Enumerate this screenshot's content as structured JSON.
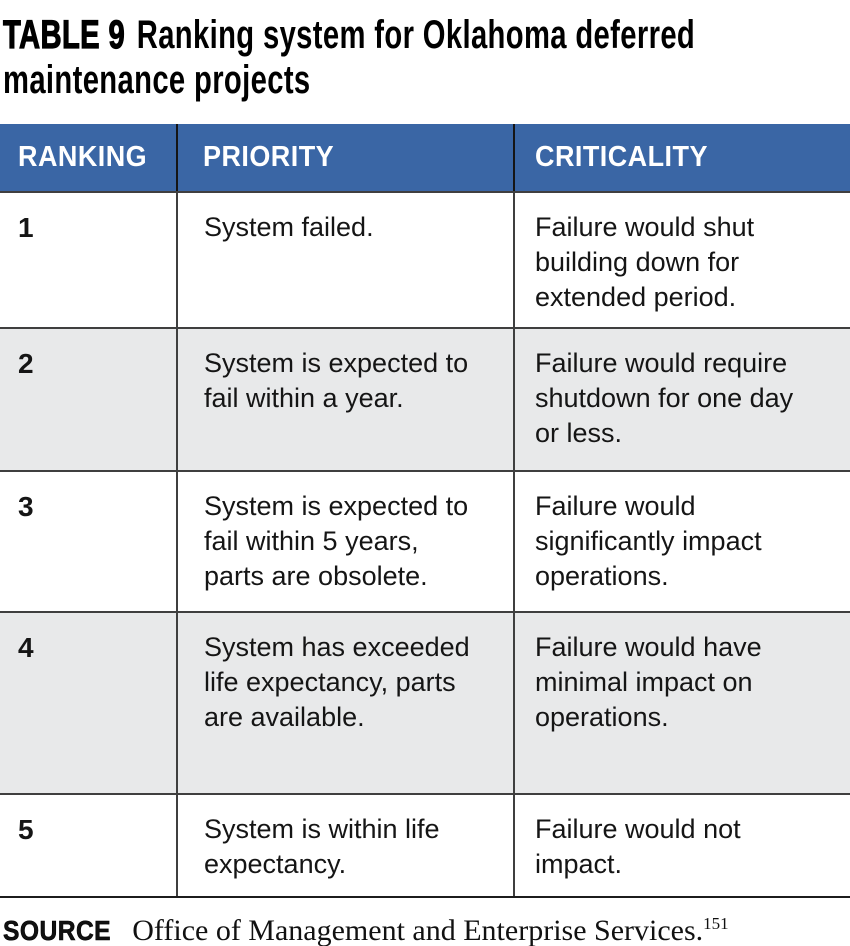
{
  "title": {
    "label": "TABLE 9",
    "text": "Ranking system for Oklahoma deferred maintenance projects"
  },
  "table": {
    "columns": [
      "RANKING",
      "PRIORITY",
      "CRITICALITY"
    ],
    "rows": [
      {
        "ranking": "1",
        "priority": "System failed.",
        "criticality": "Failure would shut building down for extended period."
      },
      {
        "ranking": "2",
        "priority": "System is expected to fail within a year.",
        "criticality": "Failure would require shutdown for one day or less."
      },
      {
        "ranking": "3",
        "priority": "System is expected to fail within 5 years, parts are obsolete.",
        "criticality": "Failure would significantly impact operations."
      },
      {
        "ranking": "4",
        "priority": "System has exceeded life expectancy, parts are available.",
        "criticality": "Failure would have minimal impact on operations."
      },
      {
        "ranking": "5",
        "priority": "System is within life expectancy.",
        "criticality": "Failure would not impact."
      }
    ]
  },
  "source": {
    "label": "SOURCE",
    "text": "Office of Management and Enterprise Services.",
    "footnote": "151"
  },
  "colors": {
    "header_bg": "#3a66a5",
    "header_text": "#ffffff",
    "row_alt_bg": "#e8e9ea"
  }
}
